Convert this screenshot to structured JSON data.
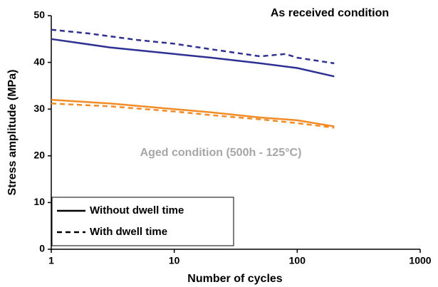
{
  "chart_data": {
    "type": "line",
    "xlabel": "Number of cycles",
    "ylabel": "Stress amplitude (MPa)",
    "annotations": [
      {
        "text": "As received condition",
        "color": "#000000"
      },
      {
        "text": "Aged condition (500h - 125°C)",
        "color": "#a6a6a6"
      }
    ],
    "xscale": "log",
    "xlim": [
      1,
      1000
    ],
    "xticks": [
      1,
      10,
      100,
      1000
    ],
    "ylim": [
      0,
      50
    ],
    "yticks": [
      0,
      10,
      20,
      30,
      40,
      50
    ],
    "legend": [
      {
        "name": "Without dwell time",
        "dash": "solid"
      },
      {
        "name": "With dwell time",
        "dash": "dashed"
      }
    ],
    "legend_position": "lower left",
    "series": [
      {
        "color": "#2e3192",
        "dash": "solid",
        "x": [
          1,
          3,
          10,
          20,
          50,
          100,
          200
        ],
        "values": [
          45,
          43.2,
          41.8,
          41,
          39.8,
          38.8,
          37
        ]
      },
      {
        "color": "#2e3192",
        "dash": "dashed",
        "x": [
          1,
          2,
          5,
          10,
          20,
          50,
          80,
          100,
          200
        ],
        "values": [
          47,
          46.2,
          44.8,
          44,
          42.8,
          41.3,
          41.8,
          41,
          39.8
        ]
      },
      {
        "color": "#f28c28",
        "dash": "solid",
        "x": [
          1,
          3,
          10,
          20,
          50,
          100,
          200
        ],
        "values": [
          32,
          31.2,
          30,
          29.3,
          28.2,
          27.6,
          26.3
        ]
      },
      {
        "color": "#f28c28",
        "dash": "dashed",
        "x": [
          1,
          3,
          10,
          20,
          50,
          100,
          200
        ],
        "values": [
          31.2,
          30.6,
          29.5,
          28.7,
          27.8,
          27,
          26
        ]
      }
    ]
  }
}
